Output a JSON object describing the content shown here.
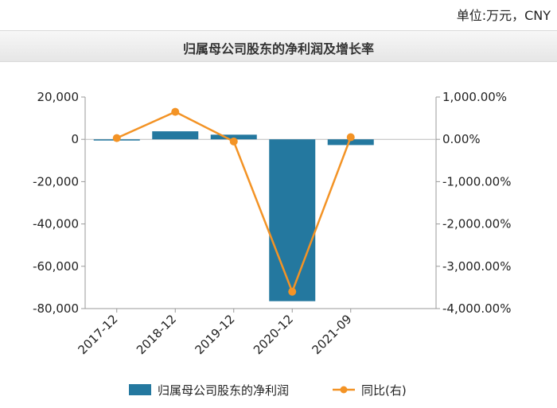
{
  "unit_label": "单位:万元，CNY",
  "chart_data": {
    "type": "bar",
    "title": "归属母公司股东的净利润及增长率",
    "categories": [
      "2017-12",
      "2018-12",
      "2019-12",
      "2020-12",
      "2021-09"
    ],
    "series": [
      {
        "name": "归属母公司股东的净利润",
        "kind": "bar",
        "axis": "left",
        "color": "#24789f",
        "values": [
          -300,
          3800,
          2200,
          -76500,
          -2700
        ]
      },
      {
        "name": "同比(右)",
        "kind": "line",
        "axis": "right",
        "color": "#f39325",
        "values": [
          30,
          650,
          -50,
          -3600,
          50
        ]
      }
    ],
    "left_axis": {
      "ylim": [
        -80000,
        20000
      ],
      "ticks": [
        20000,
        0,
        -20000,
        -40000,
        -60000,
        -80000
      ],
      "tick_labels": [
        "20,000",
        "0",
        "-20,000",
        "-40,000",
        "-60,000",
        "-80,000"
      ]
    },
    "right_axis": {
      "ylim": [
        -4000,
        1000
      ],
      "ticks": [
        1000,
        0,
        -1000,
        -2000,
        -3000,
        -4000
      ],
      "tick_labels": [
        "1,000.00%",
        "0.00%",
        "-1,000.00%",
        "-2,000.00%",
        "-3,000.00%",
        "-4,000.00%"
      ]
    },
    "legend_position": "bottom",
    "grid": false
  }
}
